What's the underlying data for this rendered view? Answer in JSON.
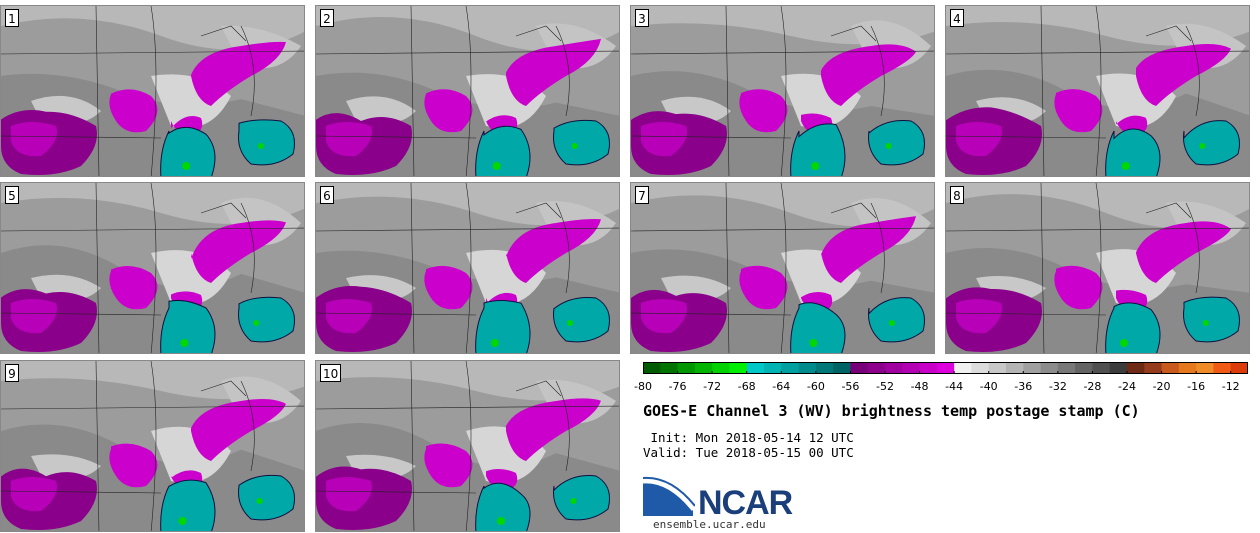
{
  "panels": [
    {
      "label": "1"
    },
    {
      "label": "2"
    },
    {
      "label": "3"
    },
    {
      "label": "4"
    },
    {
      "label": "5"
    },
    {
      "label": "6"
    },
    {
      "label": "7"
    },
    {
      "label": "8"
    },
    {
      "label": "9"
    },
    {
      "label": "10"
    }
  ],
  "colorbar": {
    "ticks": [
      "-80",
      "-76",
      "-72",
      "-68",
      "-64",
      "-60",
      "-56",
      "-52",
      "-48",
      "-44",
      "-40",
      "-36",
      "-32",
      "-28",
      "-24",
      "-20",
      "-16",
      "-12"
    ],
    "min": -80,
    "max": -10,
    "colors": [
      "#005a00",
      "#007300",
      "#009600",
      "#00b400",
      "#00d200",
      "#00f000",
      "#00c8c8",
      "#00b4b4",
      "#00a0a0",
      "#008c8c",
      "#007878",
      "#006464",
      "#780078",
      "#8c008c",
      "#a000a0",
      "#b400b4",
      "#c800c8",
      "#dc00dc",
      "#f0f0f0",
      "#dcdcdc",
      "#c8c8c8",
      "#b4b4b4",
      "#a0a0a0",
      "#8c8c8c",
      "#787878",
      "#646464",
      "#505050",
      "#3c3c3c",
      "#6e2a14",
      "#963c1e",
      "#c85a1e",
      "#e6781e",
      "#f08c28",
      "#f05a14",
      "#dc3c0a"
    ]
  },
  "title": "GOES-E Channel 3 (WV) brightness temp postage stamp (C)",
  "init_line": " Init: Mon 2018-05-14 12 UTC",
  "valid_line": "Valid: Tue 2018-05-15 00 UTC",
  "logo_text": "NCAR",
  "url": "ensemble.ucar.edu",
  "colors": {
    "magenta": "#cc00cc",
    "purple": "#8a008a",
    "teal": "#00a8a8",
    "green": "#00d800",
    "logo_blue": "#1a3f7a"
  }
}
